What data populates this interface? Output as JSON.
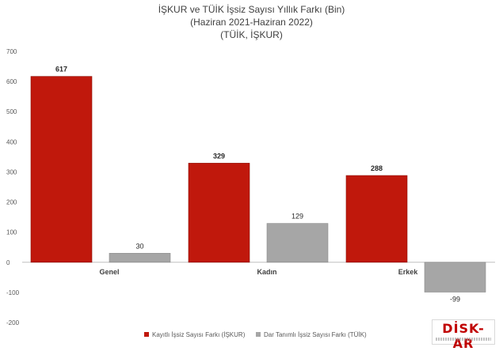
{
  "chart_data": {
    "type": "bar",
    "title": "İŞKUR ve TÜİK İşsiz Sayısı Yıllık Farkı (Bin)",
    "subtitle_lines": [
      "(Haziran 2021-Haziran 2022)",
      "(TÜİK, İŞKUR)"
    ],
    "categories": [
      "Genel",
      "Kadın",
      "Erkek"
    ],
    "series": [
      {
        "name": "Kayıtlı İşsiz Sayısı Farkı (İŞKUR)",
        "color": "#c0180c",
        "values": [
          617,
          329,
          288
        ]
      },
      {
        "name": "Dar Tanımlı İşsiz Sayısı Farkı (TÜİK)",
        "color": "#a6a6a6",
        "values": [
          30,
          129,
          -99
        ]
      }
    ],
    "ylim": [
      -200,
      700
    ],
    "yticks": [
      -200,
      -100,
      0,
      100,
      200,
      300,
      400,
      500,
      600,
      700
    ],
    "grid": false,
    "legend_position": "bottom-left"
  },
  "logo": {
    "text": "DİSK-AR"
  }
}
